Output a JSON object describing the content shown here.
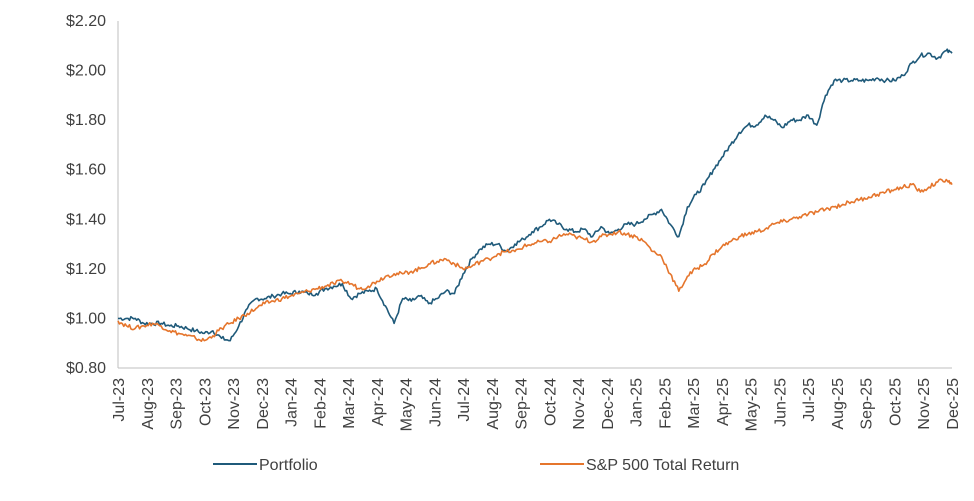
{
  "chart_data": {
    "type": "line",
    "title": "",
    "xlabel": "",
    "ylabel": "",
    "ylim": [
      0.8,
      2.2
    ],
    "y_ticks": [
      {
        "value": 0.8,
        "label": "$0.80"
      },
      {
        "value": 1.0,
        "label": "$1.00"
      },
      {
        "value": 1.2,
        "label": "$1.20"
      },
      {
        "value": 1.4,
        "label": "$1.40"
      },
      {
        "value": 1.6,
        "label": "$1.60"
      },
      {
        "value": 1.8,
        "label": "$1.80"
      },
      {
        "value": 2.0,
        "label": "$2.00"
      },
      {
        "value": 2.2,
        "label": "$2.20"
      }
    ],
    "categories": [
      "Jul-23",
      "Aug-23",
      "Sep-23",
      "Oct-23",
      "Nov-23",
      "Dec-23",
      "Jan-24",
      "Feb-24",
      "Mar-24",
      "Apr-24",
      "May-24",
      "Jun-24",
      "Jul-24",
      "Aug-24",
      "Sep-24",
      "Oct-24",
      "Nov-24",
      "Dec-24",
      "Jan-25",
      "Feb-25",
      "Mar-25",
      "Apr-25",
      "May-25",
      "Jun-25",
      "Jul-25",
      "Aug-25",
      "Sep-25",
      "Oct-25",
      "Nov-25",
      "Dec-25"
    ],
    "grid": false,
    "legend_position": "bottom",
    "series": [
      {
        "name": "Portfolio",
        "color": "#1f5a7a",
        "x": [
          0,
          0.3,
          0.6,
          0.9,
          1.2,
          1.5,
          1.8,
          2.1,
          2.4,
          2.7,
          3.0,
          3.3,
          3.6,
          3.9,
          4.2,
          4.5,
          4.8,
          5.1,
          5.4,
          5.7,
          6.0,
          6.3,
          6.6,
          6.9,
          7.2,
          7.5,
          7.8,
          8.1,
          8.4,
          8.7,
          9.0,
          9.3,
          9.6,
          9.9,
          10.2,
          10.5,
          10.8,
          11.1,
          11.4,
          11.7,
          12.0,
          12.3,
          12.6,
          12.9,
          13.2,
          13.5,
          13.8,
          14.1,
          14.4,
          14.7,
          15.0,
          15.3,
          15.6,
          15.9,
          16.2,
          16.5,
          16.8,
          17.1,
          17.4,
          17.7,
          18.0,
          18.3,
          18.6,
          18.9,
          19.2,
          19.5,
          19.8,
          20.1,
          20.4,
          20.7,
          21.0,
          21.3,
          21.6,
          21.9,
          22.2,
          22.5,
          22.8,
          23.1,
          23.4,
          23.7,
          24.0,
          24.3,
          24.6,
          24.9,
          25.2,
          25.5,
          25.8,
          26.1,
          26.4,
          26.7,
          27.0,
          27.3,
          27.6,
          27.9,
          28.2,
          28.5,
          28.8,
          29.0
        ],
        "values": [
          1.0,
          1.0,
          1.0,
          0.98,
          0.98,
          0.98,
          0.97,
          0.97,
          0.96,
          0.95,
          0.94,
          0.95,
          0.92,
          0.91,
          0.97,
          1.04,
          1.08,
          1.08,
          1.09,
          1.1,
          1.1,
          1.11,
          1.1,
          1.1,
          1.12,
          1.13,
          1.14,
          1.08,
          1.1,
          1.11,
          1.12,
          1.05,
          0.98,
          1.08,
          1.07,
          1.09,
          1.06,
          1.08,
          1.11,
          1.1,
          1.18,
          1.24,
          1.28,
          1.3,
          1.3,
          1.27,
          1.3,
          1.32,
          1.35,
          1.37,
          1.4,
          1.38,
          1.36,
          1.35,
          1.36,
          1.33,
          1.37,
          1.34,
          1.36,
          1.38,
          1.38,
          1.4,
          1.42,
          1.44,
          1.38,
          1.33,
          1.45,
          1.5,
          1.54,
          1.6,
          1.65,
          1.7,
          1.75,
          1.78,
          1.78,
          1.82,
          1.8,
          1.77,
          1.8,
          1.8,
          1.82,
          1.78,
          1.9,
          1.96,
          1.96,
          1.96,
          1.96,
          1.96,
          1.97,
          1.96,
          1.96,
          1.98,
          2.03,
          2.06,
          2.07,
          2.05,
          2.08,
          2.07
        ]
      },
      {
        "name": "S&P 500 Total Return",
        "color": "#e5752c",
        "x": [
          0,
          0.3,
          0.6,
          0.9,
          1.2,
          1.5,
          1.8,
          2.1,
          2.4,
          2.7,
          3.0,
          3.3,
          3.6,
          3.9,
          4.2,
          4.5,
          4.8,
          5.1,
          5.4,
          5.7,
          6.0,
          6.3,
          6.6,
          6.9,
          7.2,
          7.5,
          7.8,
          8.1,
          8.4,
          8.7,
          9.0,
          9.3,
          9.6,
          9.9,
          10.2,
          10.5,
          10.8,
          11.1,
          11.4,
          11.7,
          12.0,
          12.3,
          12.6,
          12.9,
          13.2,
          13.5,
          13.8,
          14.1,
          14.4,
          14.7,
          15.0,
          15.3,
          15.6,
          15.9,
          16.2,
          16.5,
          16.8,
          17.1,
          17.4,
          17.7,
          18.0,
          18.3,
          18.6,
          18.9,
          19.2,
          19.5,
          19.8,
          20.1,
          20.4,
          20.7,
          21.0,
          21.3,
          21.6,
          21.9,
          22.2,
          22.5,
          22.8,
          23.1,
          23.4,
          23.7,
          24.0,
          24.3,
          24.6,
          24.9,
          25.2,
          25.5,
          25.8,
          26.1,
          26.4,
          26.7,
          27.0,
          27.3,
          27.6,
          27.9,
          28.2,
          28.5,
          28.8,
          29.0
        ],
        "values": [
          0.99,
          0.97,
          0.96,
          0.97,
          0.98,
          0.97,
          0.95,
          0.94,
          0.93,
          0.92,
          0.91,
          0.93,
          0.96,
          0.98,
          1.0,
          1.02,
          1.04,
          1.06,
          1.07,
          1.08,
          1.09,
          1.1,
          1.11,
          1.12,
          1.13,
          1.14,
          1.15,
          1.14,
          1.12,
          1.13,
          1.15,
          1.17,
          1.18,
          1.18,
          1.19,
          1.2,
          1.22,
          1.23,
          1.24,
          1.22,
          1.2,
          1.21,
          1.23,
          1.24,
          1.26,
          1.27,
          1.27,
          1.29,
          1.3,
          1.31,
          1.31,
          1.33,
          1.34,
          1.33,
          1.32,
          1.31,
          1.33,
          1.34,
          1.35,
          1.34,
          1.33,
          1.31,
          1.27,
          1.25,
          1.18,
          1.11,
          1.17,
          1.2,
          1.22,
          1.26,
          1.29,
          1.31,
          1.33,
          1.34,
          1.35,
          1.36,
          1.38,
          1.39,
          1.4,
          1.41,
          1.42,
          1.43,
          1.44,
          1.45,
          1.46,
          1.47,
          1.48,
          1.49,
          1.5,
          1.51,
          1.52,
          1.53,
          1.54,
          1.51,
          1.53,
          1.55,
          1.56,
          1.54
        ]
      }
    ]
  }
}
